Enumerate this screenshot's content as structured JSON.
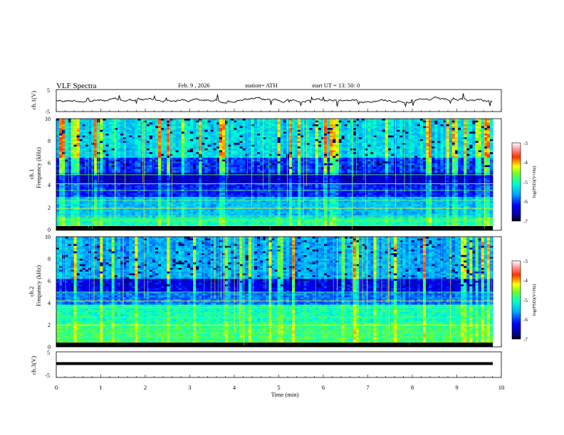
{
  "header": {
    "title": "VLF  Spectra",
    "date": "Feb. 9  , 2026",
    "station": "station= ATH",
    "start_time": "start  UT  =    13: 50: 0"
  },
  "chart_data": [
    {
      "type": "line",
      "panel": "ch1-waveform",
      "ylabel": "ch.1(V)",
      "ylim": [
        -5,
        5
      ],
      "yticks": [
        "5",
        "-5"
      ],
      "color": "#000000"
    },
    {
      "type": "heatmap",
      "panel": "ch1-spectrogram",
      "ylabel_lines": [
        "ch.1",
        "Frequency  (kHz)"
      ],
      "ylim": [
        0,
        10
      ],
      "yticks": [
        "0",
        "2",
        "4",
        "6",
        "8",
        "10"
      ],
      "colorbar": {
        "label": "log(PSD)(V²/Hz)",
        "range": [
          -7,
          -3
        ],
        "ticks": [
          "-3",
          "-4",
          "-5",
          "-6",
          "-7"
        ]
      }
    },
    {
      "type": "heatmap",
      "panel": "ch2-spectrogram",
      "ylabel_lines": [
        "ch.2",
        "Frequency  (kHz)"
      ],
      "ylim": [
        0,
        10
      ],
      "yticks": [
        "0",
        "2",
        "4",
        "6",
        "8",
        "10"
      ],
      "colorbar": {
        "label": "log(PSD)(V²/Hz)",
        "range": [
          -7,
          -3
        ],
        "ticks": [
          "-3",
          "-4",
          "-5",
          "-6",
          "-7"
        ]
      }
    },
    {
      "type": "line",
      "panel": "ch3-waveform",
      "ylabel": "ch.3(V)",
      "ylim": [
        -5,
        5
      ],
      "yticks": [
        "5",
        "-5"
      ],
      "color": "#000000"
    }
  ],
  "xaxis": {
    "label": "Time  (min)",
    "range": [
      0,
      10
    ],
    "ticks": [
      "0",
      "1",
      "2",
      "3",
      "4",
      "5",
      "6",
      "7",
      "8",
      "9",
      "10"
    ]
  }
}
